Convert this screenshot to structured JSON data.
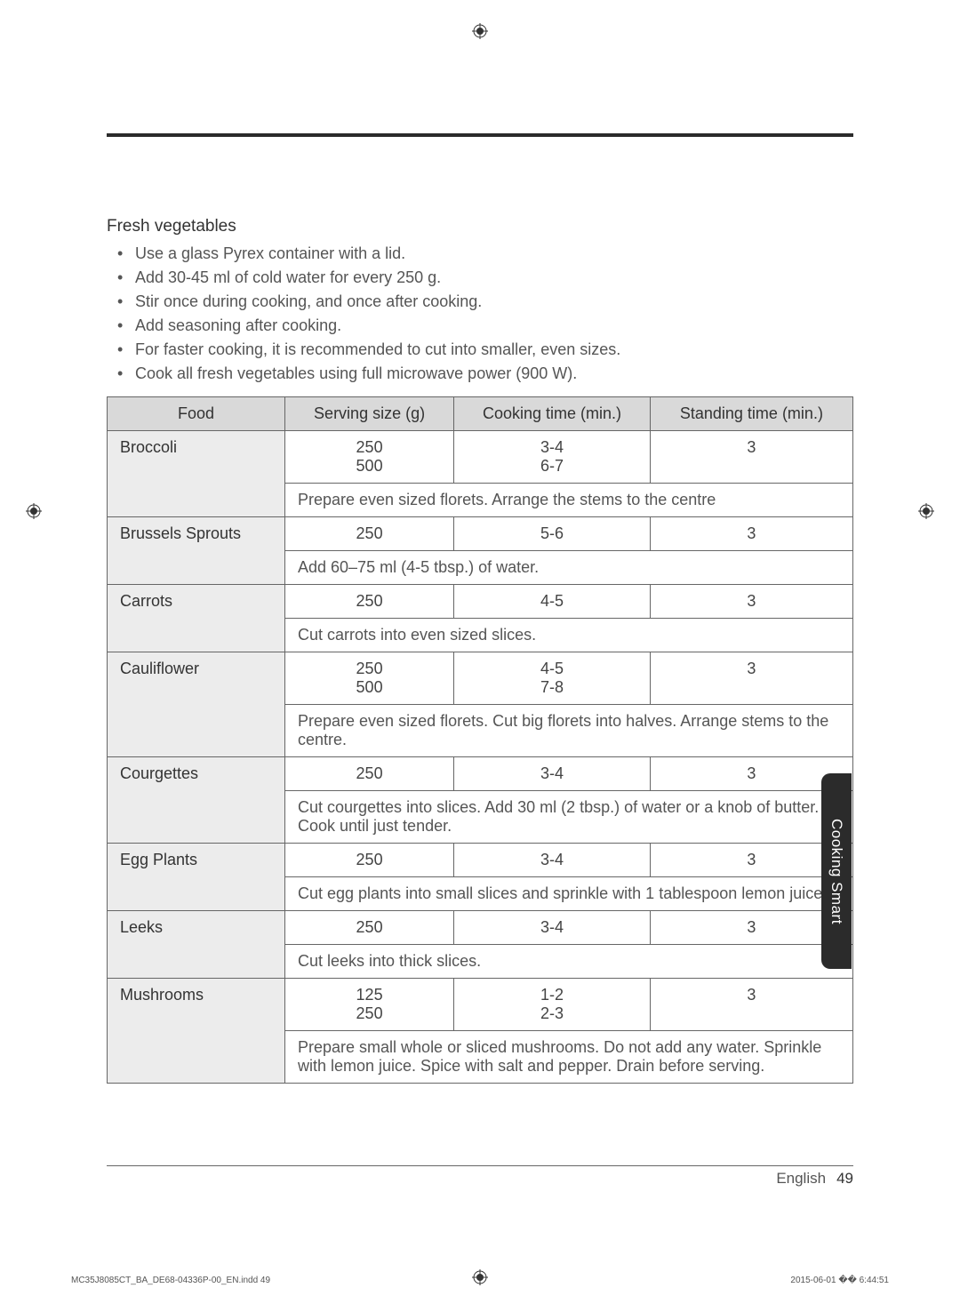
{
  "section_title": "Fresh vegetables",
  "bullets": [
    "Use a glass Pyrex container with a lid.",
    "Add 30-45 ml of cold water for every 250 g.",
    "Stir once during cooking, and once after cooking.",
    "Add seasoning after cooking.",
    "For faster cooking, it is recommended to cut into smaller, even sizes.",
    "Cook all fresh vegetables using full microwave power (900 W)."
  ],
  "table": {
    "headers": [
      "Food",
      "Serving size (g)",
      "Cooking time (min.)",
      "Standing time (min.)"
    ],
    "rows": [
      {
        "food": "Broccoli",
        "serving": "250\n500",
        "cook": "3-4\n6-7",
        "stand": "3",
        "note": "Prepare even sized florets. Arrange the stems to the centre"
      },
      {
        "food": "Brussels Sprouts",
        "serving": "250",
        "cook": "5-6",
        "stand": "3",
        "note": "Add 60–75 ml (4-5 tbsp.) of water."
      },
      {
        "food": "Carrots",
        "serving": "250",
        "cook": "4-5",
        "stand": "3",
        "note": "Cut carrots into even sized slices."
      },
      {
        "food": "Cauliflower",
        "serving": "250\n500",
        "cook": "4-5\n7-8",
        "stand": "3",
        "note": "Prepare even sized florets. Cut big florets into halves. Arrange stems to the centre."
      },
      {
        "food": "Courgettes",
        "serving": "250",
        "cook": "3-4",
        "stand": "3",
        "note": "Cut courgettes into slices. Add 30 ml (2 tbsp.) of water or a knob of butter. Cook until just tender."
      },
      {
        "food": "Egg Plants",
        "serving": "250",
        "cook": "3-4",
        "stand": "3",
        "note": "Cut egg plants into small slices and sprinkle with 1 tablespoon lemon juice."
      },
      {
        "food": "Leeks",
        "serving": "250",
        "cook": "3-4",
        "stand": "3",
        "note": "Cut leeks into thick slices."
      },
      {
        "food": "Mushrooms",
        "serving": "125\n250",
        "cook": "1-2\n2-3",
        "stand": "3",
        "note": "Prepare small whole or sliced mushrooms. Do not add any water. Sprinkle with lemon juice. Spice with salt and pepper. Drain before serving."
      }
    ]
  },
  "side_tab": "Cooking Smart",
  "footer": {
    "lang": "English",
    "page": "49"
  },
  "print": {
    "file": "MC35J8085CT_BA_DE68-04336P-00_EN.indd   49",
    "date": "2015-06-01   �� 6:44:51"
  },
  "colors": {
    "rule": "#2b2b2b",
    "header_bg": "#d9d9d9",
    "food_bg": "#ececec",
    "border": "#666666",
    "text": "#444444",
    "tab_bg": "#2b2b2b"
  }
}
